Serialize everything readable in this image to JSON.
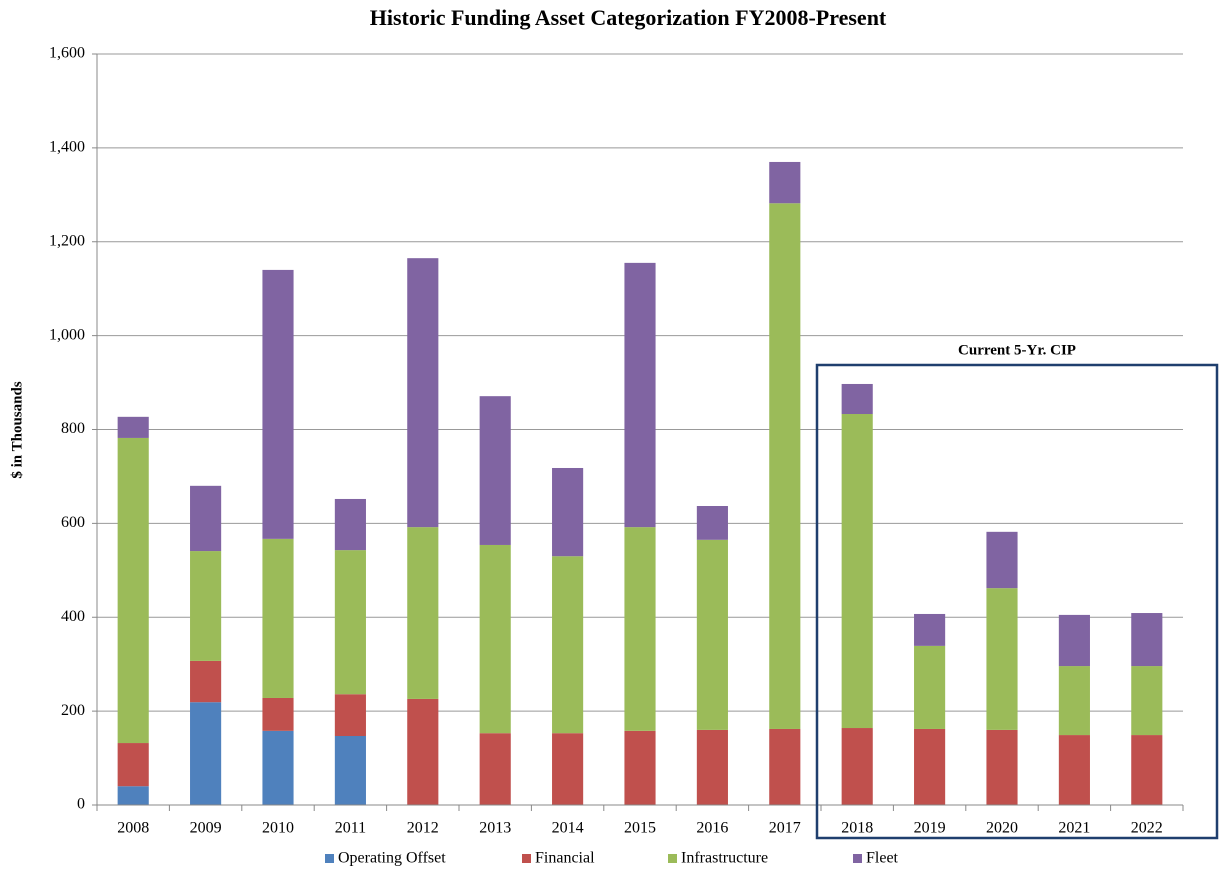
{
  "chart_data": {
    "type": "stacked_bar",
    "title": "Historic Funding Asset Categorization FY2008-Present",
    "y_label": "$ in Thousands",
    "annotation": "Current 5-Yr. CIP",
    "categories": [
      "2008",
      "2009",
      "2010",
      "2011",
      "2012",
      "2013",
      "2014",
      "2015",
      "2016",
      "2017",
      "2018",
      "2019",
      "2020",
      "2021",
      "2022"
    ],
    "series": [
      {
        "name": "Operating Offset",
        "color": "#4f81bd",
        "values": [
          40,
          219,
          158,
          147,
          0,
          0,
          0,
          0,
          0,
          0,
          0,
          0,
          0,
          0,
          0
        ]
      },
      {
        "name": "Financial",
        "color": "#c0504d",
        "values": [
          92,
          88,
          70,
          89,
          226,
          153,
          153,
          158,
          160,
          162,
          164,
          162,
          160,
          149,
          149
        ]
      },
      {
        "name": "Infrastructure",
        "color": "#9bbb59",
        "values": [
          650,
          234,
          339,
          307,
          366,
          401,
          377,
          434,
          405,
          1120,
          669,
          177,
          302,
          147,
          147
        ]
      },
      {
        "name": "Fleet",
        "color": "#8064a2",
        "values": [
          45,
          139,
          573,
          109,
          573,
          317,
          188,
          563,
          72,
          88,
          64,
          68,
          120,
          109,
          113
        ]
      }
    ],
    "ylim": [
      0,
      1600
    ],
    "yticks": [
      0,
      200,
      400,
      600,
      800,
      {
        "value": 1000,
        "label": "1,000"
      },
      {
        "value": 1200,
        "label": "1,200"
      },
      {
        "value": 1400,
        "label": "1,400"
      },
      {
        "value": 1600,
        "label": "1,600"
      }
    ],
    "grid": true,
    "legend": "bottom"
  }
}
